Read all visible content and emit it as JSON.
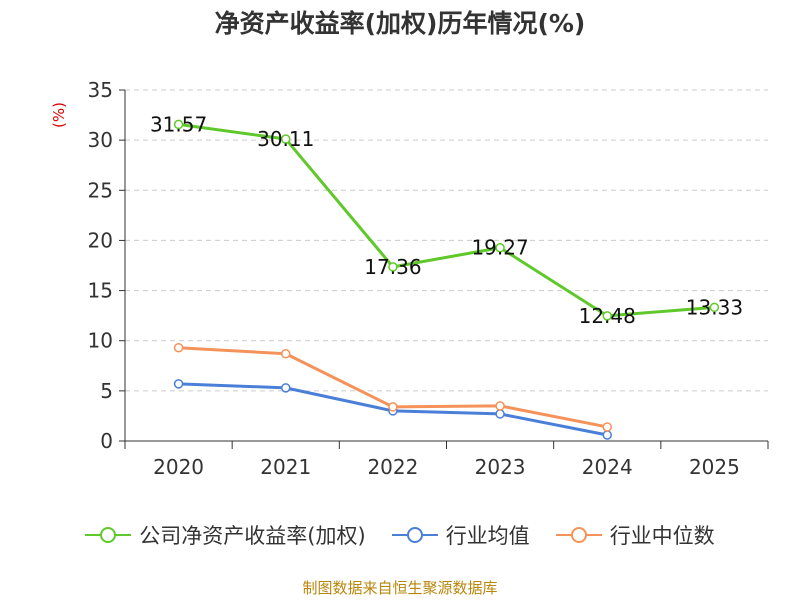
{
  "chart_data": {
    "type": "line",
    "title": "净资产收益率(加权)历年情况(%)",
    "ylabel": "(%)",
    "xlabel": "",
    "categories": [
      "2020",
      "2021",
      "2022",
      "2023",
      "2024",
      "2025"
    ],
    "ylim": [
      0,
      35
    ],
    "yticks": [
      0,
      5,
      10,
      15,
      20,
      25,
      30,
      35
    ],
    "grid": "horizontal-dashed",
    "legend_position": "bottom",
    "series": [
      {
        "name": "公司净资产收益率(加权)",
        "color": "#5fc82a",
        "values": [
          31.57,
          30.11,
          17.36,
          19.27,
          12.48,
          13.33
        ],
        "labels": [
          "31.57",
          "30.11",
          "17.36",
          "19.27",
          "12.48",
          "13.33"
        ]
      },
      {
        "name": "行业均值",
        "color": "#4a7fd8",
        "values": [
          5.7,
          5.3,
          3.0,
          2.7,
          0.6,
          null
        ]
      },
      {
        "name": "行业中位数",
        "color": "#f5925a",
        "values": [
          9.3,
          8.7,
          3.4,
          3.5,
          1.4,
          null
        ]
      }
    ]
  },
  "footer": {
    "source": "制图数据来自恒生聚源数据库"
  }
}
